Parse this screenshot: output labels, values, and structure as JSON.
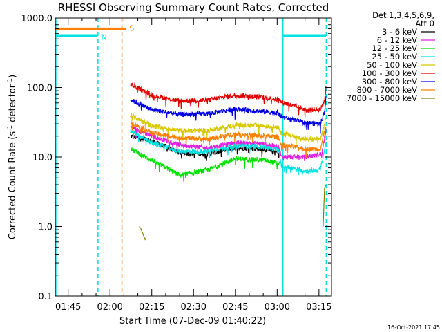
{
  "chart_data": {
    "type": "line",
    "title": "RHESSI Observing Summary Count Rates, Corrected",
    "xlabel": "Start Time (07-Dec-09 01:40:22)",
    "ylabel_main": "Corrected Count Rate (s",
    "ylabel_sup1": "-1",
    "ylabel_mid": " detector",
    "ylabel_sup2": "-1",
    "ylabel_end": ")",
    "yscale": "log",
    "ylim": [
      0.1,
      1000.0
    ],
    "xlim_minutes": [
      100.37,
      199.5
    ],
    "y_ticks": [
      {
        "value": 1000.0,
        "label": "1000.0"
      },
      {
        "value": 100.0,
        "label": "100.0"
      },
      {
        "value": 10.0,
        "label": "10.0"
      },
      {
        "value": 1.0,
        "label": "1.0"
      },
      {
        "value": 0.1,
        "label": "0.1"
      }
    ],
    "x_ticks": [
      {
        "minute": 105,
        "label": "01:45"
      },
      {
        "minute": 120,
        "label": "02:00"
      },
      {
        "minute": 135,
        "label": "02:15"
      },
      {
        "minute": 150,
        "label": "02:30"
      },
      {
        "minute": 165,
        "label": "02:45"
      },
      {
        "minute": 180,
        "label": "03:00"
      },
      {
        "minute": 195,
        "label": "03:15"
      }
    ],
    "legend_header": [
      "Det 1,3,4,5,6,9,",
      "Att 0"
    ],
    "legend_position": "right",
    "series": [
      {
        "name": "3 - 6 keV",
        "color": "#000000",
        "points": [
          [
            127.4,
            20
          ],
          [
            135,
            17
          ],
          [
            145,
            11.5
          ],
          [
            155,
            11
          ],
          [
            165,
            13.5
          ],
          [
            175,
            13
          ],
          [
            181,
            11.5
          ]
        ]
      },
      {
        "name": "6 - 12 keV",
        "color": "#e020e0",
        "points": [
          [
            127.4,
            27
          ],
          [
            135,
            20
          ],
          [
            145,
            15
          ],
          [
            155,
            13.5
          ],
          [
            165,
            16
          ],
          [
            175,
            15.5
          ],
          [
            180.5,
            14
          ],
          [
            181.5,
            10
          ],
          [
            190,
            10
          ],
          [
            196,
            11
          ],
          [
            197.5,
            25
          ]
        ]
      },
      {
        "name": "12 - 25 keV",
        "color": "#00e000",
        "points": [
          [
            127.4,
            13
          ],
          [
            135,
            9
          ],
          [
            145,
            5.5
          ],
          [
            155,
            6.5
          ],
          [
            165,
            9.5
          ],
          [
            175,
            9
          ],
          [
            181,
            8
          ]
        ]
      },
      {
        "name": "25 - 50 keV",
        "color": "#00e0e0",
        "points": [
          [
            127.4,
            24
          ],
          [
            135,
            16
          ],
          [
            145,
            12
          ],
          [
            155,
            12
          ],
          [
            165,
            14.5
          ],
          [
            175,
            14
          ],
          [
            180.5,
            12.5
          ],
          [
            181.5,
            7.5
          ],
          [
            190,
            6.3
          ],
          [
            195.5,
            6.5
          ],
          [
            197.5,
            16
          ]
        ]
      },
      {
        "name": "50 - 100 keV",
        "color": "#d8c800",
        "points": [
          [
            127.4,
            40
          ],
          [
            135,
            28
          ],
          [
            145,
            24
          ],
          [
            155,
            24
          ],
          [
            165,
            29
          ],
          [
            175,
            28
          ],
          [
            180.5,
            27
          ],
          [
            181.5,
            22
          ],
          [
            190,
            18
          ],
          [
            195.5,
            18
          ],
          [
            197.5,
            35
          ]
        ]
      },
      {
        "name": "100 - 300 keV",
        "color": "#e00000",
        "points": [
          [
            127.4,
            112
          ],
          [
            135,
            78
          ],
          [
            145,
            64
          ],
          [
            155,
            66
          ],
          [
            165,
            78
          ],
          [
            175,
            72
          ],
          [
            180.5,
            67
          ],
          [
            181.5,
            62
          ],
          [
            190,
            48
          ],
          [
            195.5,
            48
          ],
          [
            197,
            65
          ],
          [
            197.5,
            115
          ]
        ]
      },
      {
        "name": "300 - 800 keV",
        "color": "#0000e0",
        "points": [
          [
            127.4,
            66
          ],
          [
            135,
            48
          ],
          [
            145,
            41
          ],
          [
            155,
            42
          ],
          [
            165,
            49
          ],
          [
            175,
            45
          ],
          [
            180.5,
            43
          ],
          [
            181.5,
            38
          ],
          [
            190,
            31
          ],
          [
            195.5,
            30
          ],
          [
            197,
            45
          ],
          [
            197.5,
            75
          ]
        ]
      },
      {
        "name": "800 - 7000 keV",
        "color": "#ff8000",
        "points": [
          [
            127.4,
            32
          ],
          [
            135,
            22
          ],
          [
            145,
            19
          ],
          [
            155,
            18
          ],
          [
            165,
            21.5
          ],
          [
            175,
            20
          ],
          [
            180.5,
            19.5
          ],
          [
            181.5,
            15
          ],
          [
            190,
            13
          ],
          [
            195.5,
            13
          ],
          [
            197.5,
            28
          ]
        ]
      },
      {
        "name": "7000 - 15000 keV",
        "color": "#808000",
        "points": [
          [
            130.5,
            1.0
          ],
          [
            131,
            0.95
          ],
          [
            132.6,
            0.65
          ],
          [
            133,
            0.7
          ],
          [
            196.5,
            1.0
          ],
          [
            197,
            3.5
          ],
          [
            197.4,
            4
          ]
        ]
      }
    ],
    "intervals": [
      {
        "label": "S",
        "color": "#ff8000",
        "minute_start": 100.37,
        "minute_end": 125.7,
        "y_value": 700
      },
      {
        "label": "N",
        "color": "#00e0e0",
        "minute_start": 100.37,
        "minute_end": 115.6,
        "y_value": 560
      },
      {
        "label": "",
        "color": "#00e0e0",
        "minute_start": 182.3,
        "minute_end": 197.5,
        "y_value": 560
      }
    ],
    "vertical_lines": [
      {
        "minute": 100.6,
        "color": "#00e0e0",
        "style": "solid"
      },
      {
        "minute": 115.7,
        "color": "#00e0e0",
        "style": "dashed"
      },
      {
        "minute": 124.3,
        "color": "#ff8000",
        "style": "dashed"
      },
      {
        "minute": 182.1,
        "color": "#00e0e0",
        "style": "solid"
      },
      {
        "minute": 197.6,
        "color": "#00e0e0",
        "style": "dashed"
      }
    ]
  },
  "footer": {
    "timestamp": "16-Oct-2021 17:45"
  }
}
